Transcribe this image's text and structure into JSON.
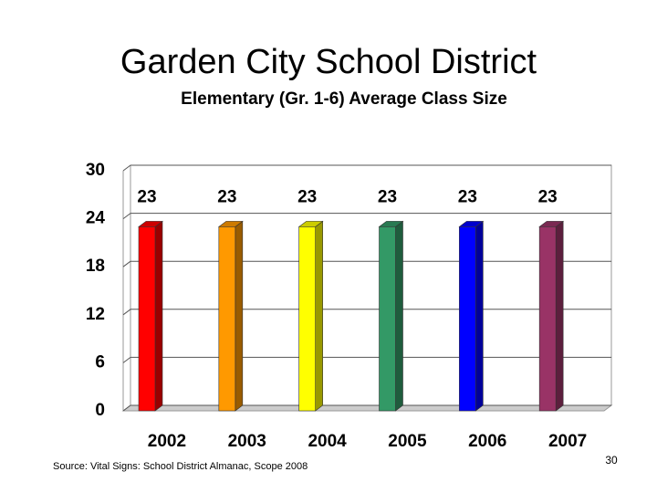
{
  "chart_data": {
    "type": "bar",
    "title": "Garden City School District",
    "subtitle": "Elementary (Gr. 1-6) Average Class Size",
    "categories": [
      "2002",
      "2003",
      "2004",
      "2005",
      "2006",
      "2007"
    ],
    "values": [
      23,
      23,
      23,
      23,
      23,
      23
    ],
    "colors": [
      "#ff0000",
      "#ff9900",
      "#ffff00",
      "#339966",
      "#0000ff",
      "#993366"
    ],
    "ylim": [
      0,
      30
    ],
    "yticks": [
      0,
      6,
      12,
      18,
      24,
      30
    ],
    "grid": true,
    "source": "Source: Vital Signs: School District Almanac, Scope 2008",
    "page_number": "30"
  }
}
